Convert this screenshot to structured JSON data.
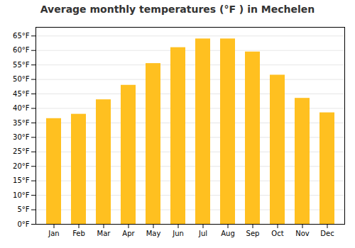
{
  "chart_data": {
    "type": "bar",
    "title": "Average monthly temperatures (°F ) in Mechelen",
    "categories": [
      "Jan",
      "Feb",
      "Mar",
      "Apr",
      "May",
      "Jun",
      "Jul",
      "Aug",
      "Sep",
      "Oct",
      "Nov",
      "Dec"
    ],
    "values": [
      36.5,
      38.0,
      43.0,
      48.0,
      55.5,
      61.0,
      64.0,
      64.0,
      59.5,
      51.5,
      43.5,
      38.5
    ],
    "color": "#FFC020",
    "ylim": [
      0,
      68
    ],
    "yticks": [
      {
        "value": 0,
        "label": "0°F"
      },
      {
        "value": 5,
        "label": "5°F"
      },
      {
        "value": 10,
        "label": "10°F"
      },
      {
        "value": 15,
        "label": "15°F"
      },
      {
        "value": 20,
        "label": "20°F"
      },
      {
        "value": 25,
        "label": "25°F"
      },
      {
        "value": 30,
        "label": "30°F"
      },
      {
        "value": 35,
        "label": "35°F"
      },
      {
        "value": 40,
        "label": "40°F"
      },
      {
        "value": 45,
        "label": "45°F"
      },
      {
        "value": 50,
        "label": "50°F"
      },
      {
        "value": 55,
        "label": "55°F"
      },
      {
        "value": 60,
        "label": "60°F"
      },
      {
        "value": 65,
        "label": "65°F"
      }
    ],
    "grid": true
  }
}
